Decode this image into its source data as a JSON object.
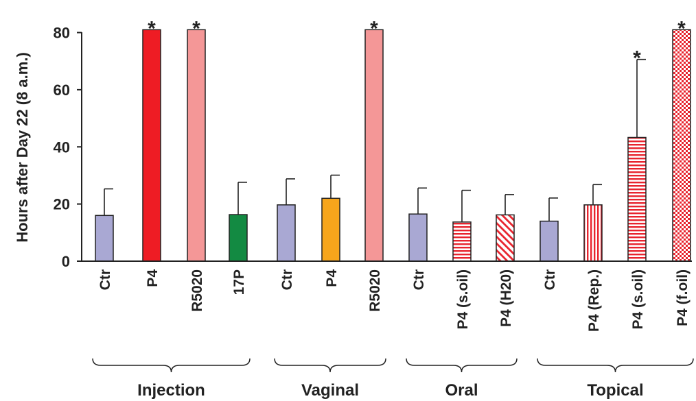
{
  "chart_data": {
    "type": "bar",
    "title": "",
    "xlabel": "",
    "ylabel": "Hours after Day 22 (8 a.m.)",
    "ylim": [
      0,
      80
    ],
    "yticks": [
      "0",
      "20",
      "40",
      "60",
      "80"
    ],
    "categories": [
      "Ctr",
      "P4",
      "R5020",
      "17P",
      "Ctr",
      "P4",
      "R5020",
      "Ctr",
      "P4 (s.oil)",
      "P4 (H20)",
      "Ctr",
      "P4 (Rep.)",
      "P4 (s.oil)",
      "P4 (f.oil)"
    ],
    "values": [
      16,
      81,
      81,
      16.3,
      19.7,
      22,
      81,
      16.5,
      13.7,
      16.2,
      14,
      19.7,
      43.3,
      81
    ],
    "error_plus": [
      9.3,
      0,
      0,
      11.3,
      9.1,
      8.1,
      0,
      9.1,
      11.1,
      7.1,
      8.1,
      7.1,
      27.3,
      0
    ],
    "significant": [
      false,
      true,
      true,
      false,
      false,
      false,
      true,
      false,
      false,
      false,
      false,
      false,
      true,
      true
    ],
    "significance_marker": "*",
    "fills": [
      "solid",
      "solid",
      "solid",
      "solid",
      "solid",
      "solid",
      "solid",
      "solid",
      "hatch-horizontal",
      "hatch-diagonal",
      "solid",
      "hatch-vertical",
      "hatch-horizontal",
      "checker"
    ],
    "colors": [
      "#a9a8d3",
      "#ee1c24",
      "#f49797",
      "#138a42",
      "#a9a8d3",
      "#f6a51c",
      "#f49797",
      "#a9a8d3",
      "#e8242e",
      "#e8242e",
      "#a9a8d3",
      "#e8242e",
      "#e8242e",
      "#e8242e"
    ],
    "groups": [
      {
        "label": "Injection",
        "start": 0,
        "end": 3
      },
      {
        "label": "Vaginal",
        "start": 4,
        "end": 6
      },
      {
        "label": "Oral",
        "start": 7,
        "end": 9
      },
      {
        "label": "Topical",
        "start": 10,
        "end": 13
      }
    ],
    "grid": false,
    "legend": "none"
  }
}
